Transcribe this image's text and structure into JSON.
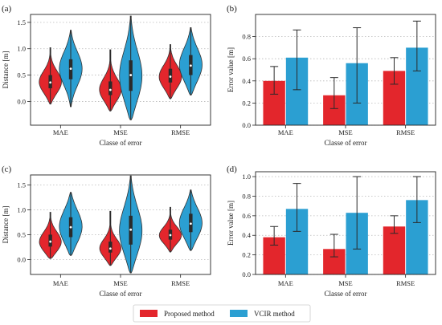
{
  "colors": {
    "proposed": "#e3262c",
    "vcir": "#2b9fd2",
    "box": "#2a2a2a",
    "grid": "#b8b8b8",
    "axis": "#222222",
    "errbar": "#2a2a2a"
  },
  "legend": {
    "entries": [
      {
        "label": "Proposed method",
        "color": "#e3262c"
      },
      {
        "label": "VCIR method",
        "color": "#2b9fd2"
      }
    ],
    "placement": "bottom-center"
  },
  "chart_data": [
    {
      "panel": "(a)",
      "type": "violin",
      "categories": [
        "MAE",
        "MSE",
        "RMSE"
      ],
      "xlabel": "Classe of error",
      "ylabel": "Distance [m]",
      "ylim": [
        -0.45,
        1.65
      ],
      "yticks": [
        0.0,
        0.5,
        1.0,
        1.5
      ],
      "grid": "horizontal dotted",
      "series": [
        {
          "name": "Proposed method",
          "violins": [
            {
              "min": -0.05,
              "q1": 0.25,
              "median": 0.36,
              "q3": 0.5,
              "max": 1.02,
              "mode": 0.35
            },
            {
              "min": -0.18,
              "q1": 0.12,
              "median": 0.22,
              "q3": 0.38,
              "max": 0.98,
              "mode": 0.2
            },
            {
              "min": 0.05,
              "q1": 0.36,
              "median": 0.47,
              "q3": 0.62,
              "max": 1.08,
              "mode": 0.45
            }
          ]
        },
        {
          "name": "VCIR method",
          "violins": [
            {
              "min": -0.1,
              "q1": 0.42,
              "median": 0.62,
              "q3": 0.8,
              "max": 1.35,
              "mode": 0.62
            },
            {
              "min": -0.35,
              "q1": 0.2,
              "median": 0.5,
              "q3": 0.78,
              "max": 1.62,
              "mode": 0.45
            },
            {
              "min": 0.12,
              "q1": 0.5,
              "median": 0.68,
              "q3": 0.88,
              "max": 1.4,
              "mode": 0.68
            }
          ]
        }
      ]
    },
    {
      "panel": "(b)",
      "type": "bar",
      "categories": [
        "MAE",
        "MSE",
        "RMSE"
      ],
      "xlabel": "Classe of error",
      "ylabel": "Error value [m]",
      "ylim": [
        0.0,
        1.0
      ],
      "yticks": [
        0.0,
        0.2,
        0.4,
        0.6,
        0.8
      ],
      "grid": "horizontal dotted",
      "series": [
        {
          "name": "Proposed method",
          "values": [
            0.4,
            0.27,
            0.49
          ],
          "err_low": [
            0.28,
            0.15,
            0.37
          ],
          "err_high": [
            0.53,
            0.43,
            0.61
          ]
        },
        {
          "name": "VCIR method",
          "values": [
            0.61,
            0.56,
            0.7
          ],
          "err_low": [
            0.32,
            0.2,
            0.49
          ],
          "err_high": [
            0.86,
            0.88,
            0.94
          ]
        }
      ]
    },
    {
      "panel": "(c)",
      "type": "violin",
      "categories": [
        "MAE",
        "MSE",
        "RMSE"
      ],
      "xlabel": "Classe of error",
      "ylabel": "Distance [m]",
      "ylim": [
        -0.3,
        1.7
      ],
      "yticks": [
        0.0,
        0.5,
        1.0,
        1.5
      ],
      "grid": "horizontal dotted",
      "series": [
        {
          "name": "Proposed method",
          "violins": [
            {
              "min": 0.02,
              "q1": 0.26,
              "median": 0.36,
              "q3": 0.5,
              "max": 0.95,
              "mode": 0.33
            },
            {
              "min": -0.12,
              "q1": 0.14,
              "median": 0.22,
              "q3": 0.36,
              "max": 0.97,
              "mode": 0.2
            },
            {
              "min": 0.15,
              "q1": 0.4,
              "median": 0.49,
              "q3": 0.6,
              "max": 1.05,
              "mode": 0.47
            }
          ]
        },
        {
          "name": "VCIR method",
          "violins": [
            {
              "min": 0.08,
              "q1": 0.45,
              "median": 0.65,
              "q3": 0.85,
              "max": 1.35,
              "mode": 0.65
            },
            {
              "min": -0.27,
              "q1": 0.3,
              "median": 0.6,
              "q3": 0.88,
              "max": 1.68,
              "mode": 0.55
            },
            {
              "min": 0.18,
              "q1": 0.55,
              "median": 0.72,
              "q3": 0.92,
              "max": 1.4,
              "mode": 0.72
            }
          ]
        }
      ]
    },
    {
      "panel": "(d)",
      "type": "bar",
      "categories": [
        "MAE",
        "MSE",
        "RMSE"
      ],
      "xlabel": "Classe of error",
      "ylabel": "Error value [m]",
      "ylim": [
        0.0,
        1.05
      ],
      "yticks": [
        0.0,
        0.2,
        0.4,
        0.6,
        0.8,
        1.0
      ],
      "grid": "horizontal dotted",
      "series": [
        {
          "name": "Proposed method",
          "values": [
            0.38,
            0.26,
            0.49
          ],
          "err_low": [
            0.3,
            0.18,
            0.42
          ],
          "err_high": [
            0.49,
            0.41,
            0.6
          ]
        },
        {
          "name": "VCIR method",
          "values": [
            0.67,
            0.63,
            0.76
          ],
          "err_low": [
            0.44,
            0.26,
            0.53
          ],
          "err_high": [
            0.93,
            1.0,
            1.0
          ]
        }
      ]
    }
  ]
}
